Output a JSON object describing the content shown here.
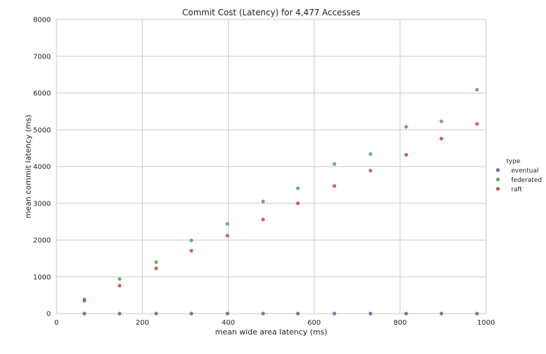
{
  "chart_data": {
    "type": "scatter",
    "title": "Commit Cost (Latency) for 4,477 Accesses",
    "xlabel": "mean wide area latency (ms)",
    "ylabel": "mean commit latency (ms)",
    "xlim": [
      0,
      1000
    ],
    "ylim": [
      0,
      8000
    ],
    "xticks": [
      0,
      200,
      400,
      600,
      800,
      1000
    ],
    "yticks": [
      0,
      1000,
      2000,
      3000,
      4000,
      5000,
      6000,
      7000,
      8000
    ],
    "grid": true,
    "legend": {
      "title": "type",
      "placement": "right"
    },
    "series": [
      {
        "name": "eventual",
        "color": "#4c72b0",
        "x": [
          65,
          147,
          232,
          314,
          398,
          481,
          562,
          647,
          731,
          814,
          896,
          979
        ],
        "y": [
          0,
          0,
          0,
          0,
          0,
          0,
          0,
          0,
          0,
          0,
          0,
          0
        ]
      },
      {
        "name": "federated",
        "color": "#55a868",
        "x": [
          65,
          147,
          232,
          314,
          398,
          481,
          562,
          647,
          731,
          814,
          896,
          979
        ],
        "y": [
          390,
          940,
          1400,
          1990,
          2440,
          3050,
          3410,
          4070,
          4340,
          5080,
          5230,
          6090
        ]
      },
      {
        "name": "raft",
        "color": "#c44e52",
        "x": [
          65,
          147,
          232,
          314,
          398,
          481,
          562,
          647,
          731,
          814,
          896,
          979
        ],
        "y": [
          350,
          760,
          1230,
          1710,
          2120,
          2560,
          3000,
          3470,
          3890,
          4320,
          4760,
          5160
        ]
      }
    ]
  }
}
